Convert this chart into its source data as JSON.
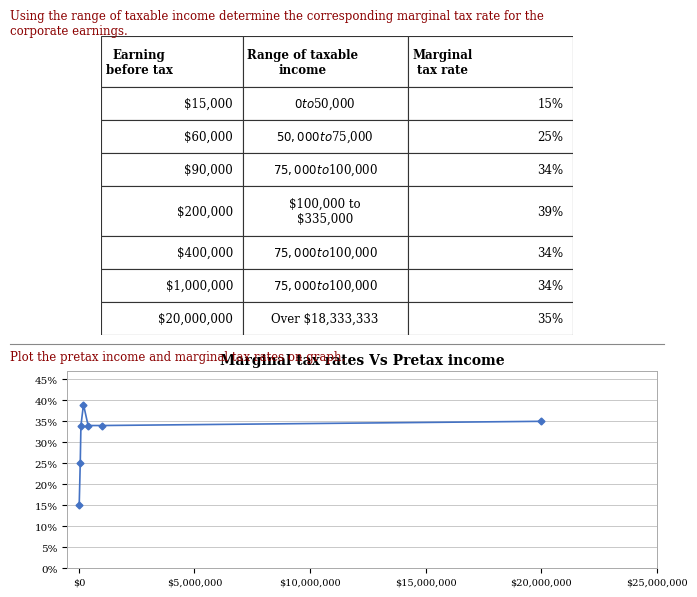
{
  "text_intro": "Using the range of taxable income determine the corresponding marginal tax rate for the\ncorporate earnings.",
  "table_col0_header": "Earning\nbefore tax",
  "table_col1_header": "Range of taxable\nincome",
  "table_col2_header": "Marginal\ntax rate",
  "table_rows": [
    [
      "$15,000",
      "$0 to $50,000",
      "15%"
    ],
    [
      "$60,000",
      "$50,000 to $75,000",
      "25%"
    ],
    [
      "$90,000",
      "$75,000 to $100,000",
      "34%"
    ],
    [
      "$200,000",
      "$100,000 to\n$335,000",
      "39%"
    ],
    [
      "$400,000",
      "$75,000 to $100,000",
      "34%"
    ],
    [
      "$1,000,000",
      "$75,000 to $100,000",
      "34%"
    ],
    [
      "$20,000,000",
      "Over $18,333,333",
      "35%"
    ]
  ],
  "plot_text": "Plot the pretax income and marginal tax rates on graph.",
  "plot_title": "Marginal tax rates Vs Pretax income",
  "x_values": [
    15000,
    60000,
    90000,
    200000,
    400000,
    1000000,
    20000000
  ],
  "y_values": [
    0.15,
    0.25,
    0.34,
    0.39,
    0.34,
    0.34,
    0.35
  ],
  "line_color": "#4472C4",
  "marker_style": "D",
  "marker_size": 3.5,
  "x_ticks": [
    0,
    5000000,
    10000000,
    15000000,
    20000000,
    25000000
  ],
  "x_tick_labels": [
    "$0",
    "$5,000,000",
    "$10,000,000",
    "$15,000,000",
    "$20,000,000",
    "$25,000,000"
  ],
  "y_ticks": [
    0.0,
    0.05,
    0.1,
    0.15,
    0.2,
    0.25,
    0.3,
    0.35,
    0.4,
    0.45
  ],
  "y_tick_labels": [
    "0%",
    "5%",
    "10%",
    "15%",
    "20%",
    "25%",
    "30%",
    "35%",
    "40%",
    "45%"
  ],
  "xlim": [
    -500000,
    25000000
  ],
  "ylim": [
    0,
    0.47
  ],
  "bg_color": "#FFFFFF",
  "plot_area_color": "#FFFFFF",
  "grid_color": "#C8C8C8",
  "font_color": "#8B0000",
  "sep_line_color": "#888888",
  "table_border_color": "#333333",
  "table_font_size": 8.5,
  "intro_font_size": 8.5,
  "plot_text_font_size": 8.5,
  "plot_title_font_size": 10
}
